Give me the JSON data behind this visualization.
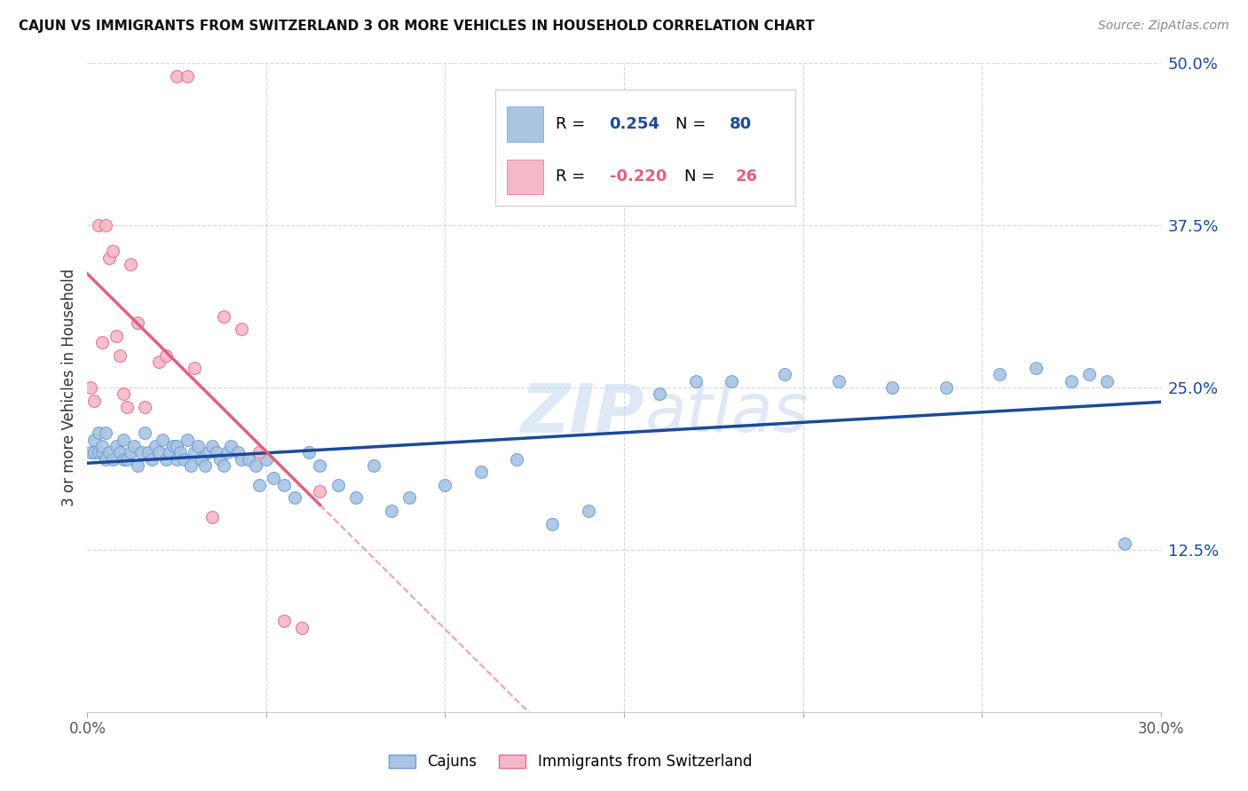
{
  "title": "CAJUN VS IMMIGRANTS FROM SWITZERLAND 3 OR MORE VEHICLES IN HOUSEHOLD CORRELATION CHART",
  "source": "Source: ZipAtlas.com",
  "ylabel_label": "3 or more Vehicles in Household",
  "cajun_R": 0.254,
  "cajun_N": 80,
  "swiss_R": -0.22,
  "swiss_N": 26,
  "cajun_color": "#aac4e2",
  "cajun_edge_color": "#6a9fd8",
  "cajun_line_color": "#1a4a9a",
  "swiss_color": "#f5b8c8",
  "swiss_edge_color": "#e07090",
  "swiss_line_color": "#e06080",
  "background_color": "#ffffff",
  "grid_color": "#d8d8d8",
  "right_tick_color": "#1a4a9a",
  "xlim": [
    0.0,
    0.3
  ],
  "ylim": [
    0.0,
    0.5
  ],
  "yticks": [
    0.0,
    0.125,
    0.25,
    0.375,
    0.5
  ],
  "ytick_labels": [
    "",
    "12.5%",
    "25.0%",
    "37.5%",
    "50.0%"
  ],
  "xticks": [
    0.0,
    0.05,
    0.1,
    0.15,
    0.2,
    0.25,
    0.3
  ],
  "xtick_labels_show": [
    "0.0%",
    "",
    "",
    "",
    "",
    "",
    "30.0%"
  ],
  "cajun_x": [
    0.001,
    0.002,
    0.002,
    0.003,
    0.003,
    0.004,
    0.004,
    0.005,
    0.005,
    0.006,
    0.007,
    0.008,
    0.009,
    0.01,
    0.01,
    0.011,
    0.012,
    0.013,
    0.014,
    0.015,
    0.016,
    0.017,
    0.018,
    0.019,
    0.02,
    0.021,
    0.022,
    0.023,
    0.024,
    0.025,
    0.025,
    0.026,
    0.027,
    0.028,
    0.029,
    0.03,
    0.031,
    0.032,
    0.033,
    0.034,
    0.035,
    0.036,
    0.037,
    0.038,
    0.039,
    0.04,
    0.042,
    0.043,
    0.045,
    0.047,
    0.048,
    0.05,
    0.052,
    0.055,
    0.058,
    0.062,
    0.065,
    0.07,
    0.075,
    0.08,
    0.085,
    0.09,
    0.1,
    0.11,
    0.12,
    0.13,
    0.14,
    0.16,
    0.17,
    0.18,
    0.195,
    0.21,
    0.225,
    0.24,
    0.255,
    0.265,
    0.275,
    0.28,
    0.285,
    0.29
  ],
  "cajun_y": [
    0.2,
    0.2,
    0.21,
    0.2,
    0.215,
    0.2,
    0.205,
    0.195,
    0.215,
    0.2,
    0.195,
    0.205,
    0.2,
    0.195,
    0.21,
    0.195,
    0.2,
    0.205,
    0.19,
    0.2,
    0.215,
    0.2,
    0.195,
    0.205,
    0.2,
    0.21,
    0.195,
    0.2,
    0.205,
    0.195,
    0.205,
    0.2,
    0.195,
    0.21,
    0.19,
    0.2,
    0.205,
    0.195,
    0.19,
    0.2,
    0.205,
    0.2,
    0.195,
    0.19,
    0.2,
    0.205,
    0.2,
    0.195,
    0.195,
    0.19,
    0.175,
    0.195,
    0.18,
    0.175,
    0.165,
    0.2,
    0.19,
    0.175,
    0.165,
    0.19,
    0.155,
    0.165,
    0.175,
    0.185,
    0.195,
    0.145,
    0.155,
    0.245,
    0.255,
    0.255,
    0.26,
    0.255,
    0.25,
    0.25,
    0.26,
    0.265,
    0.255,
    0.26,
    0.255,
    0.13
  ],
  "swiss_x": [
    0.001,
    0.002,
    0.003,
    0.004,
    0.005,
    0.006,
    0.007,
    0.008,
    0.009,
    0.01,
    0.011,
    0.012,
    0.014,
    0.016,
    0.02,
    0.022,
    0.025,
    0.028,
    0.03,
    0.035,
    0.038,
    0.043,
    0.048,
    0.055,
    0.06,
    0.065
  ],
  "swiss_y": [
    0.25,
    0.24,
    0.375,
    0.285,
    0.375,
    0.35,
    0.355,
    0.29,
    0.275,
    0.245,
    0.235,
    0.345,
    0.3,
    0.235,
    0.27,
    0.275,
    0.49,
    0.49,
    0.265,
    0.15,
    0.305,
    0.295,
    0.2,
    0.07,
    0.065,
    0.17
  ]
}
